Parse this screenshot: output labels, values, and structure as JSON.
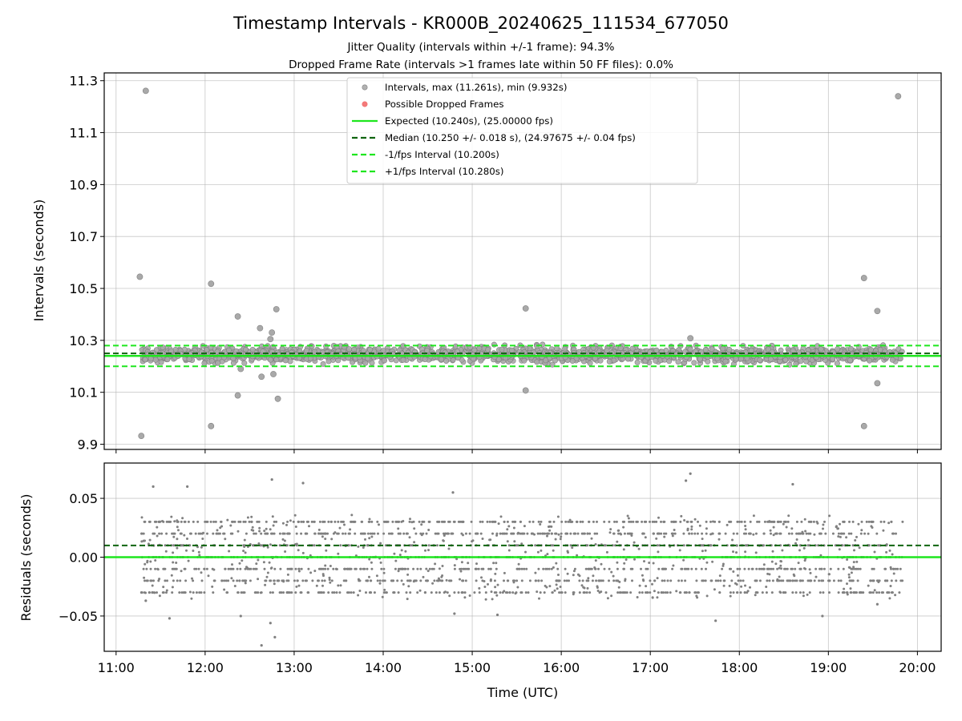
{
  "chart_data": [
    {
      "type": "scatter",
      "title": "Timestamp Intervals - KR000B_20240625_111534_677050",
      "subtitle_lines": [
        "Jitter Quality (intervals within +/-1 frame): 94.3%",
        "Dropped Frame Rate (intervals >1 frames late within 50 FF files): 0.0%"
      ],
      "xlabel": "",
      "ylabel": "Intervals (seconds)",
      "xlim": [
        "10:52",
        "20:16"
      ],
      "ylim": [
        9.88,
        11.33
      ],
      "yticks": [
        "9.9",
        "10.1",
        "10.3",
        "10.5",
        "10.7",
        "10.9",
        "11.1",
        "11.3"
      ],
      "grid": true,
      "legend_position": "top-center",
      "legend": [
        {
          "label": "Intervals, max (11.261s), min (9.932s)",
          "style": "marker",
          "color": "#a9a9a9"
        },
        {
          "label": "Possible Dropped Frames",
          "style": "marker",
          "color": "#f26b6b"
        },
        {
          "label": "Expected (10.240s), (25.00000 fps)",
          "style": "solid",
          "color": "#1ee61e"
        },
        {
          "label": "Median (10.250 +/- 0.018 s), (24.97675 +/- 0.04 fps)",
          "style": "dashed",
          "color": "#0f640f"
        },
        {
          "label": "-1/fps Interval (10.200s)",
          "style": "dashed",
          "color": "#1ee61e"
        },
        {
          "label": "+1/fps Interval (10.280s)",
          "style": "dashed",
          "color": "#1ee61e"
        }
      ],
      "reference_lines": {
        "expected": 10.24,
        "median": 10.25,
        "minus_one_frame": 10.2,
        "plus_one_frame": 10.28
      },
      "x_range": [
        "11:17",
        "19:50"
      ],
      "band_center": 10.245,
      "band_halfwidth": 0.045,
      "outliers": [
        {
          "x": "11:16",
          "y": 10.545
        },
        {
          "x": "11:17",
          "y": 9.932
        },
        {
          "x": "11:20",
          "y": 11.261
        },
        {
          "x": "12:04",
          "y": 10.518
        },
        {
          "x": "12:04",
          "y": 9.97
        },
        {
          "x": "12:22",
          "y": 10.392
        },
        {
          "x": "12:22",
          "y": 10.088
        },
        {
          "x": "12:24",
          "y": 10.19
        },
        {
          "x": "12:37",
          "y": 10.347
        },
        {
          "x": "12:38",
          "y": 10.16
        },
        {
          "x": "12:45",
          "y": 10.33
        },
        {
          "x": "12:44",
          "y": 10.305
        },
        {
          "x": "12:46",
          "y": 10.17
        },
        {
          "x": "12:48",
          "y": 10.42
        },
        {
          "x": "12:49",
          "y": 10.075
        },
        {
          "x": "15:36",
          "y": 10.423
        },
        {
          "x": "15:36",
          "y": 10.107
        },
        {
          "x": "17:27",
          "y": 10.308
        },
        {
          "x": "19:24",
          "y": 10.54
        },
        {
          "x": "19:24",
          "y": 9.97
        },
        {
          "x": "19:33",
          "y": 10.413
        },
        {
          "x": "19:33",
          "y": 10.135
        },
        {
          "x": "19:47",
          "y": 11.24
        }
      ],
      "dropped_frames": []
    },
    {
      "type": "scatter",
      "xlabel": "Time (UTC)",
      "ylabel": "Residuals (seconds)",
      "xlim": [
        "10:52",
        "20:16"
      ],
      "ylim": [
        -0.08,
        0.08
      ],
      "yticks": [
        "−0.05",
        "0.00",
        "0.05"
      ],
      "xticks": [
        "11:00",
        "12:00",
        "13:00",
        "14:00",
        "15:00",
        "16:00",
        "17:00",
        "18:00",
        "19:00",
        "20:00"
      ],
      "grid": true,
      "reference_lines": {
        "zero": 0.0,
        "median_offset": 0.01
      },
      "x_range": [
        "11:17",
        "19:50"
      ],
      "residual_levels": [
        -0.03,
        -0.02,
        -0.01,
        0.0,
        0.01,
        0.02,
        0.03
      ],
      "outliers": [
        {
          "x": "11:20",
          "y": -0.037
        },
        {
          "x": "11:25",
          "y": 0.06
        },
        {
          "x": "11:36",
          "y": -0.052
        },
        {
          "x": "11:48",
          "y": 0.06
        },
        {
          "x": "12:24",
          "y": -0.05
        },
        {
          "x": "12:38",
          "y": -0.075
        },
        {
          "x": "12:45",
          "y": 0.066
        },
        {
          "x": "12:44",
          "y": -0.056
        },
        {
          "x": "12:47",
          "y": -0.068
        },
        {
          "x": "13:06",
          "y": 0.063
        },
        {
          "x": "14:47",
          "y": 0.055
        },
        {
          "x": "14:48",
          "y": -0.048
        },
        {
          "x": "15:17",
          "y": -0.049
        },
        {
          "x": "17:24",
          "y": 0.065
        },
        {
          "x": "17:27",
          "y": 0.071
        },
        {
          "x": "17:44",
          "y": -0.054
        },
        {
          "x": "18:36",
          "y": 0.062
        },
        {
          "x": "18:56",
          "y": -0.05
        },
        {
          "x": "19:33",
          "y": -0.04
        }
      ]
    }
  ],
  "colors": {
    "interval_points": "#a9a9a9",
    "interval_points_edge": "#808080",
    "residual_points": "#808080",
    "expected_line": "#1ee61e",
    "median_line": "#0f640f",
    "grid": "#b0b0b0"
  }
}
